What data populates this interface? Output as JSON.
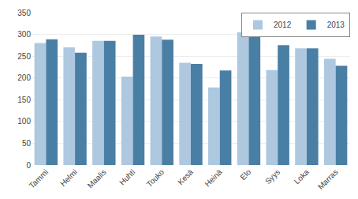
{
  "chart_data": {
    "type": "bar",
    "categories": [
      "Tammi",
      "Helmi",
      "Maalis",
      "Huhti",
      "Touko",
      "Kesä",
      "Heinä",
      "Elo",
      "Syys",
      "Loka",
      "Marras"
    ],
    "series": [
      {
        "name": "2012",
        "color": "#adc8df",
        "values": [
          280,
          270,
          285,
          203,
          295,
          235,
          178,
          305,
          218,
          268,
          244
        ]
      },
      {
        "name": "2013",
        "color": "#4a7fa5",
        "values": [
          289,
          258,
          285,
          299,
          288,
          232,
          217,
          295,
          275,
          268,
          228
        ]
      }
    ],
    "ylim": [
      0,
      350
    ],
    "yticks": [
      0,
      50,
      100,
      150,
      200,
      250,
      300,
      350
    ],
    "grid": true,
    "legend": "upper right"
  }
}
